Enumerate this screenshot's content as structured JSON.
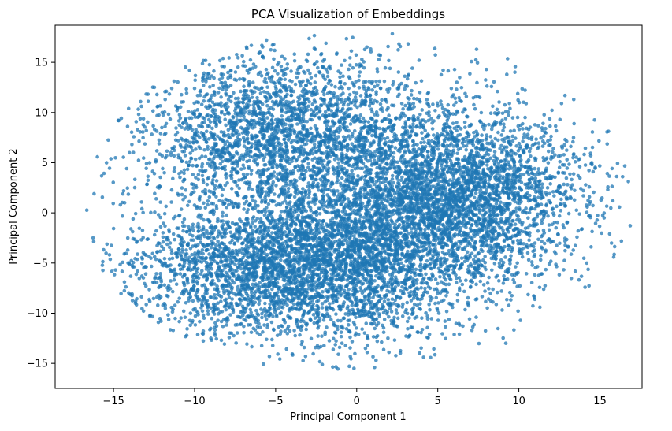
{
  "chart_data": {
    "type": "scatter",
    "title": "PCA Visualization of Embeddings",
    "xlabel": "Principal Component 1",
    "ylabel": "Principal Component 2",
    "xlim": [
      -18.6,
      17.6
    ],
    "ylim": [
      -17.5,
      18.7
    ],
    "xticks": [
      -15,
      -10,
      -5,
      0,
      5,
      10,
      15
    ],
    "yticks": [
      -15,
      -10,
      -5,
      0,
      5,
      10,
      15
    ],
    "xtick_labels": [
      "−15",
      "−10",
      "−5",
      "0",
      "5",
      "10",
      "15"
    ],
    "ytick_labels": [
      "−15",
      "−10",
      "−5",
      "0",
      "5",
      "10",
      "15"
    ],
    "grid": false,
    "legend": "none",
    "marker_color": "#1f77b4",
    "marker_alpha": 0.75,
    "point_count_estimate": 10000,
    "series": [
      {
        "clusters": [
          {
            "center": [
              6.0,
              1.5
            ],
            "spread": [
              4.0,
              4.5
            ],
            "count": 3600
          },
          {
            "center": [
              -5.5,
              -5.5
            ],
            "spread": [
              4.5,
              3.5
            ],
            "count": 2800
          },
          {
            "center": [
              -4.5,
              8.0
            ],
            "spread": [
              4.5,
              4.0
            ],
            "count": 2600
          },
          {
            "center": [
              0.5,
              -4.0
            ],
            "spread": [
              3.5,
              4.5
            ],
            "count": 1600
          }
        ],
        "points_sample": [
          [
            -17.3,
            2.0
          ],
          [
            16.4,
            3.6
          ],
          [
            -5.9,
            -15.7
          ],
          [
            1.1,
            -15.4
          ],
          [
            -7.2,
            17.3
          ],
          [
            15.8,
            1.2
          ],
          [
            -16.2,
            1.9
          ],
          [
            15.6,
            -2.1
          ],
          [
            11.3,
            -9.4
          ],
          [
            -12.3,
            -11.0
          ],
          [
            9.5,
            6.8
          ],
          [
            -3.0,
            15.8
          ],
          [
            0.2,
            14.8
          ],
          [
            13.9,
            -1.6
          ],
          [
            -14.1,
            -5.0
          ]
        ]
      }
    ]
  }
}
